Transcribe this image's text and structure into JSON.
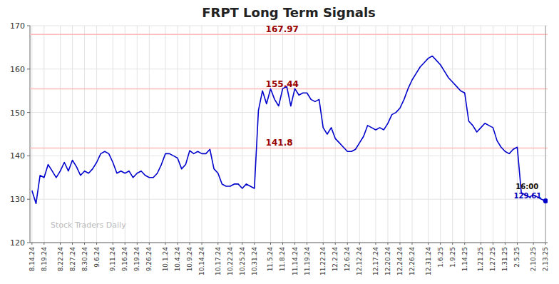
{
  "chart_data": {
    "type": "line",
    "title": "FRPT Long Term Signals",
    "watermark": "Stock Traders Daily",
    "color": "#0000cc",
    "grid": true,
    "ylim": [
      120,
      170
    ],
    "yticks": [
      120,
      130,
      140,
      150,
      160,
      170
    ],
    "hlines": [
      {
        "y": 167.97,
        "label": "167.97",
        "color": "#ffbbbb",
        "label_color": "#990000"
      },
      {
        "y": 155.44,
        "label": "155.44",
        "color": "#ffbbbb",
        "label_color": "#990000"
      },
      {
        "y": 141.8,
        "label": "141.8",
        "color": "#ffbbbb",
        "label_color": "#990000"
      }
    ],
    "annotations": [
      {
        "label": "16:00"
      },
      {
        "label": "129.61",
        "value": 129.61
      }
    ],
    "categories": [
      "8.14.24",
      null,
      null,
      "8.19.24",
      null,
      null,
      null,
      "8.22.24",
      null,
      null,
      "8.27.24",
      null,
      null,
      "8.30.24",
      null,
      null,
      "9.6.24",
      null,
      null,
      null,
      "9.11.24",
      null,
      null,
      "9.16.24",
      null,
      null,
      "9.19.24",
      null,
      null,
      "9.26.24",
      null,
      null,
      null,
      "10.1.24",
      null,
      null,
      "10.4.24",
      null,
      null,
      "10.9.24",
      null,
      null,
      "10.14.24",
      null,
      null,
      null,
      "10.17.24",
      null,
      null,
      "10.22.24",
      null,
      null,
      "10.25.24",
      null,
      null,
      "10.31.24",
      null,
      null,
      null,
      "11.5.24",
      null,
      null,
      "11.8.24",
      null,
      null,
      "11.14.24",
      null,
      null,
      "11.19.24",
      null,
      null,
      null,
      "11.22.24",
      null,
      null,
      "12.2.24",
      null,
      null,
      "12.6.24",
      null,
      null,
      "12.12.24",
      null,
      null,
      null,
      "12.17.24",
      null,
      null,
      "12.20.24",
      null,
      null,
      "12.24.24",
      null,
      null,
      "12.26.24",
      null,
      null,
      null,
      "12.31.24",
      null,
      null,
      "1.6.25",
      null,
      null,
      "1.9.25",
      null,
      null,
      "1.14.25",
      null,
      null,
      null,
      "1.21.25",
      null,
      null,
      "1.27.25",
      null,
      null,
      "1.31.25",
      null,
      null,
      "2.5.25",
      null,
      null,
      null,
      "2.10.25",
      null,
      null,
      "2.13.25"
    ],
    "values": [
      132.0,
      129.0,
      135.5,
      135.0,
      138.0,
      136.5,
      135.0,
      136.5,
      138.5,
      136.5,
      139.0,
      137.5,
      135.5,
      136.5,
      136.0,
      137.0,
      138.5,
      140.5,
      141.0,
      140.5,
      138.5,
      136.0,
      136.5,
      136.0,
      136.5,
      135.0,
      136.0,
      136.5,
      135.5,
      135.0,
      135.0,
      136.0,
      138.0,
      140.5,
      140.5,
      140.0,
      139.5,
      137.0,
      138.0,
      141.2,
      140.5,
      141.0,
      140.5,
      140.5,
      141.5,
      137.0,
      136.0,
      133.5,
      133.0,
      133.0,
      133.5,
      133.5,
      132.5,
      133.5,
      133.0,
      132.5,
      150.5,
      155.0,
      152.0,
      155.44,
      153.0,
      151.5,
      155.5,
      156.0,
      151.5,
      155.5,
      154.0,
      154.5,
      154.5,
      153.0,
      152.5,
      153.0,
      146.5,
      145.0,
      146.5,
      144.0,
      143.0,
      142.0,
      141.0,
      141.0,
      141.5,
      143.0,
      144.5,
      147.0,
      146.5,
      146.0,
      146.5,
      146.0,
      147.5,
      149.5,
      150.0,
      151.0,
      153.0,
      155.5,
      157.5,
      159.0,
      160.5,
      161.5,
      162.5,
      163.0,
      162.0,
      161.0,
      159.5,
      158.0,
      157.0,
      156.0,
      155.0,
      154.5,
      148.0,
      147.0,
      145.5,
      146.5,
      147.5,
      147.0,
      146.5,
      143.5,
      142.0,
      141.0,
      140.5,
      141.5,
      142.0,
      131.5,
      131.0,
      130.5,
      131.0,
      130.5,
      130.0,
      129.61
    ]
  }
}
